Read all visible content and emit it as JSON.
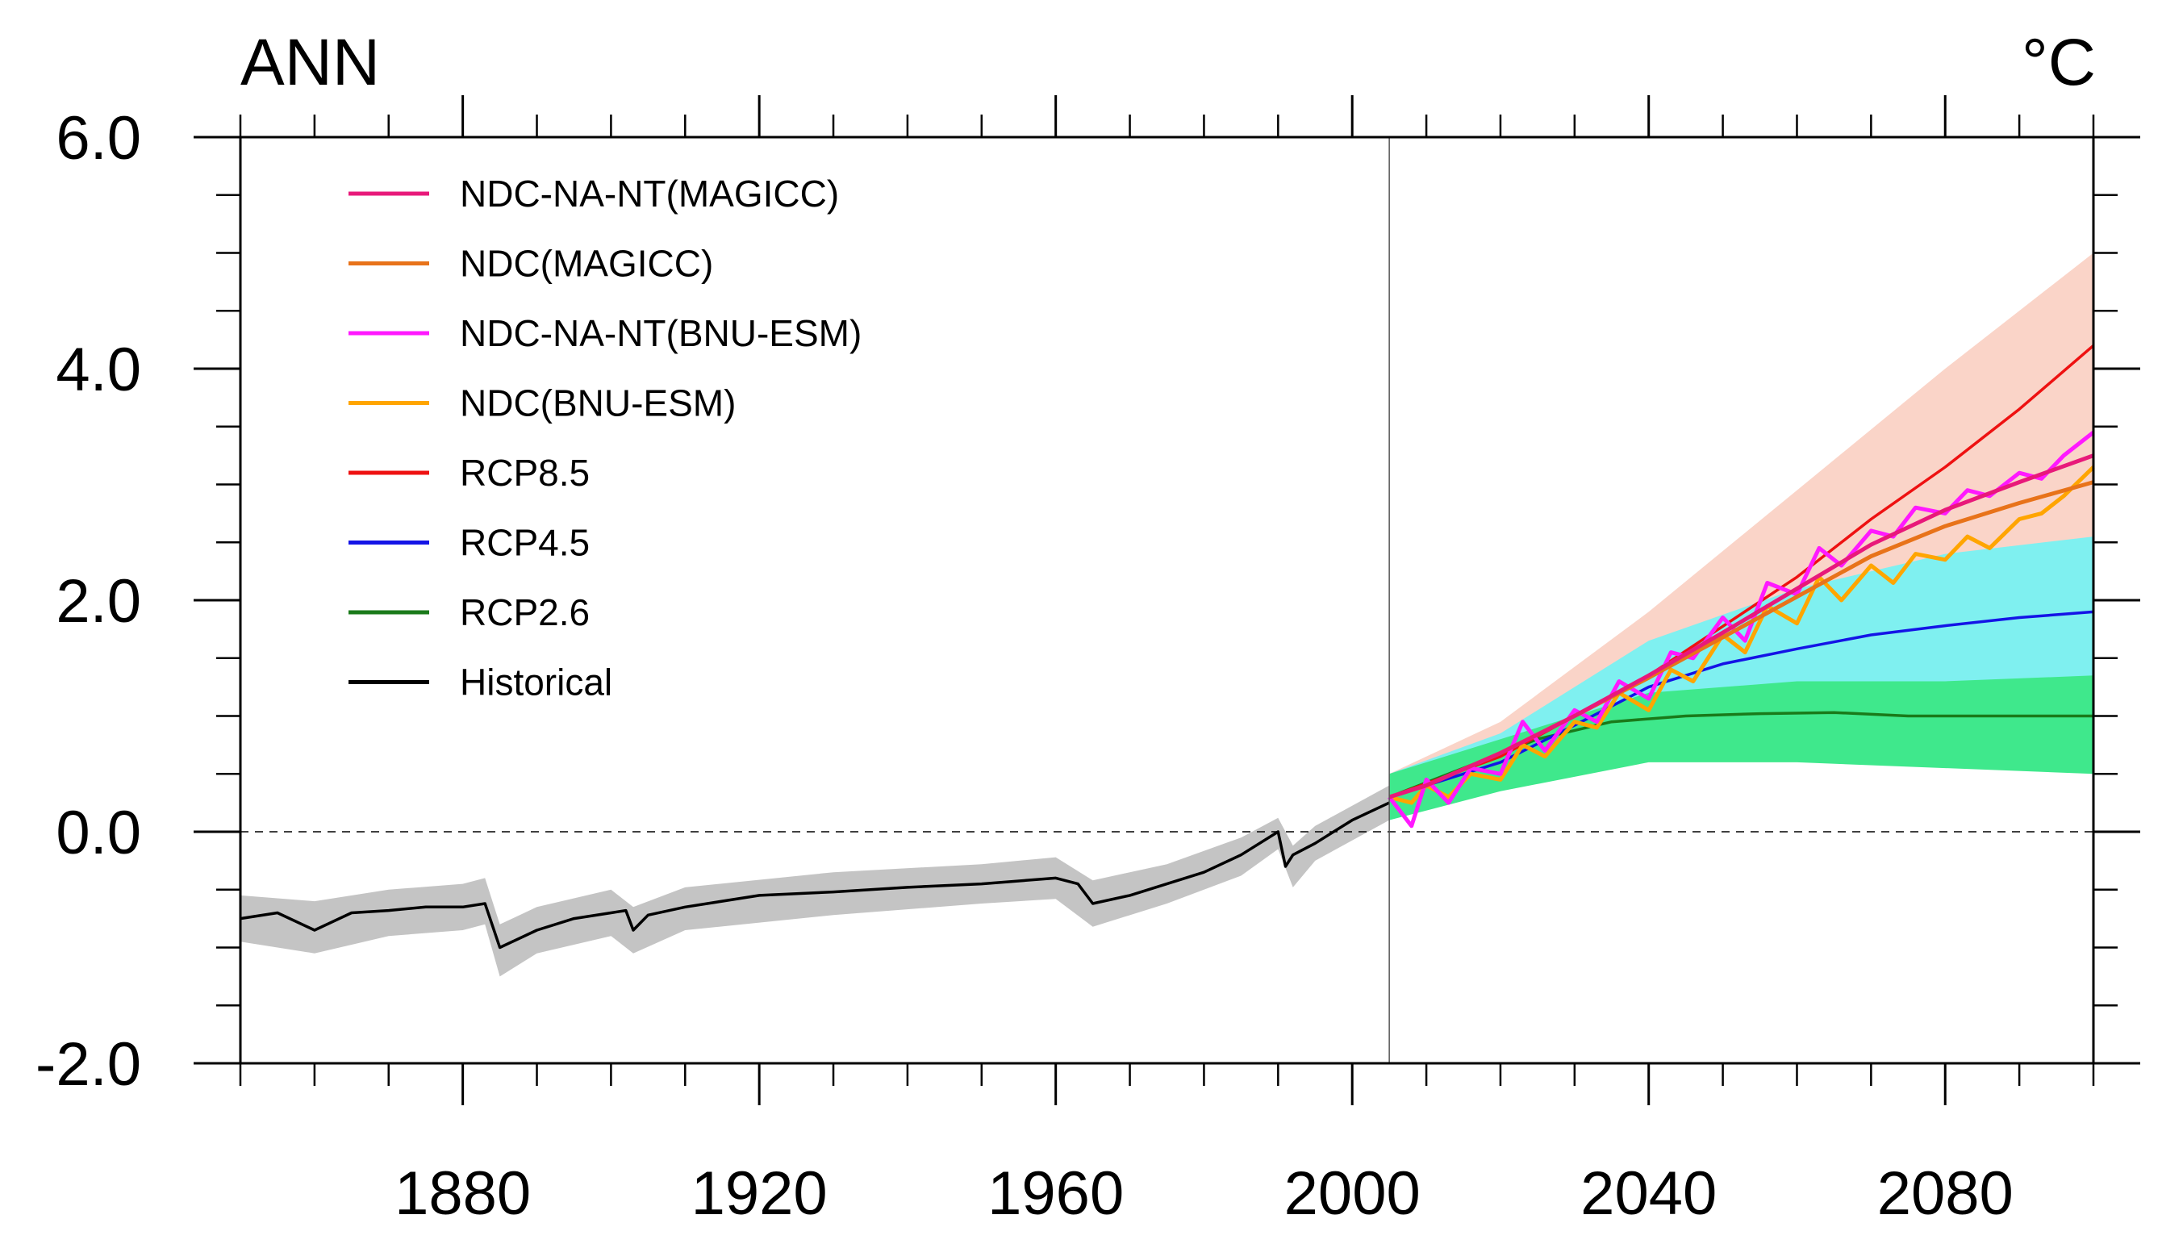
{
  "chart_data": {
    "type": "line",
    "title_left": "ANN",
    "title_right": "°C",
    "xlim": [
      1850,
      2100
    ],
    "ylim": [
      -2.0,
      6.0
    ],
    "x_ticks": [
      1880,
      1920,
      1960,
      2000,
      2040,
      2080
    ],
    "x_tick_labels": [
      "1880",
      "1920",
      "1960",
      "2000",
      "2040",
      "2080"
    ],
    "y_ticks": [
      -2.0,
      0.0,
      2.0,
      4.0,
      6.0
    ],
    "y_tick_labels": [
      "-2.0",
      "0.0",
      "2.0",
      "4.0",
      "6.0"
    ],
    "reference_line_y": 0.0,
    "divider_x": 2005,
    "legend_position": "top-left",
    "series": [
      {
        "name": "NDC-NA-NT(MAGICC)",
        "color": "#e8197a",
        "x": [
          2005,
          2010,
          2020,
          2030,
          2040,
          2050,
          2060,
          2070,
          2080,
          2090,
          2100
        ],
        "values": [
          0.3,
          0.4,
          0.68,
          1.0,
          1.35,
          1.72,
          2.1,
          2.48,
          2.78,
          3.02,
          3.25
        ]
      },
      {
        "name": "NDC(MAGICC)",
        "color": "#e8731a",
        "x": [
          2005,
          2010,
          2020,
          2030,
          2040,
          2050,
          2060,
          2070,
          2080,
          2090,
          2100
        ],
        "values": [
          0.3,
          0.4,
          0.68,
          1.0,
          1.33,
          1.68,
          2.03,
          2.38,
          2.64,
          2.84,
          3.02
        ]
      },
      {
        "name": "NDC-NA-NT(BNU-ESM)",
        "color": "#ff19ff",
        "x": [
          2005,
          2008,
          2010,
          2013,
          2016,
          2020,
          2023,
          2026,
          2030,
          2033,
          2036,
          2040,
          2043,
          2046,
          2050,
          2053,
          2056,
          2060,
          2063,
          2066,
          2070,
          2073,
          2076,
          2080,
          2083,
          2086,
          2090,
          2093,
          2096,
          2100
        ],
        "values": [
          0.3,
          0.05,
          0.45,
          0.25,
          0.55,
          0.5,
          0.95,
          0.7,
          1.05,
          0.95,
          1.3,
          1.15,
          1.55,
          1.5,
          1.85,
          1.65,
          2.15,
          2.05,
          2.45,
          2.3,
          2.6,
          2.55,
          2.8,
          2.75,
          2.95,
          2.9,
          3.1,
          3.05,
          3.25,
          3.45
        ]
      },
      {
        "name": "NDC(BNU-ESM)",
        "color": "#ffa500",
        "x": [
          2005,
          2008,
          2010,
          2013,
          2016,
          2020,
          2023,
          2026,
          2030,
          2033,
          2036,
          2040,
          2043,
          2046,
          2050,
          2053,
          2056,
          2060,
          2063,
          2066,
          2070,
          2073,
          2076,
          2080,
          2083,
          2086,
          2090,
          2093,
          2096,
          2100
        ],
        "values": [
          0.3,
          0.25,
          0.4,
          0.3,
          0.5,
          0.45,
          0.75,
          0.65,
          0.95,
          0.9,
          1.2,
          1.05,
          1.4,
          1.3,
          1.7,
          1.55,
          1.95,
          1.8,
          2.2,
          2.0,
          2.3,
          2.15,
          2.4,
          2.35,
          2.55,
          2.45,
          2.7,
          2.75,
          2.9,
          3.15
        ]
      },
      {
        "name": "RCP8.5",
        "color": "#ee1111",
        "x": [
          2005,
          2020,
          2040,
          2060,
          2070,
          2080,
          2090,
          2100
        ],
        "values": [
          0.3,
          0.65,
          1.35,
          2.2,
          2.7,
          3.15,
          3.65,
          4.2
        ]
      },
      {
        "name": "RCP4.5",
        "color": "#1414e6",
        "x": [
          2005,
          2020,
          2030,
          2040,
          2050,
          2060,
          2070,
          2080,
          2090,
          2100
        ],
        "values": [
          0.3,
          0.6,
          0.92,
          1.25,
          1.45,
          1.58,
          1.7,
          1.78,
          1.85,
          1.9
        ]
      },
      {
        "name": "RCP2.6",
        "color": "#1a7a1a",
        "x": [
          2005,
          2015,
          2025,
          2035,
          2045,
          2055,
          2065,
          2075,
          2085,
          2095,
          2100
        ],
        "values": [
          0.3,
          0.55,
          0.8,
          0.95,
          1.0,
          1.02,
          1.03,
          1.0,
          1.0,
          1.0,
          1.0
        ]
      },
      {
        "name": "Historical",
        "color": "#000000",
        "x": [
          1850,
          1855,
          1860,
          1865,
          1870,
          1875,
          1880,
          1883,
          1885,
          1890,
          1895,
          1900,
          1902,
          1903,
          1905,
          1910,
          1920,
          1930,
          1940,
          1950,
          1960,
          1963,
          1965,
          1970,
          1975,
          1980,
          1985,
          1990,
          1991,
          1992,
          1995,
          2000,
          2005
        ],
        "values": [
          -0.75,
          -0.7,
          -0.85,
          -0.7,
          -0.68,
          -0.65,
          -0.65,
          -0.62,
          -1.0,
          -0.85,
          -0.75,
          -0.7,
          -0.68,
          -0.85,
          -0.72,
          -0.65,
          -0.55,
          -0.52,
          -0.48,
          -0.45,
          -0.4,
          -0.45,
          -0.62,
          -0.55,
          -0.45,
          -0.35,
          -0.2,
          0.0,
          -0.3,
          -0.2,
          -0.1,
          0.1,
          0.25
        ]
      }
    ],
    "bands": [
      {
        "name": "Historical spread",
        "color": "#c4c4c4",
        "x": [
          1850,
          1860,
          1870,
          1880,
          1883,
          1885,
          1890,
          1900,
          1903,
          1910,
          1930,
          1950,
          1960,
          1965,
          1975,
          1985,
          1990,
          1992,
          1995,
          2005
        ],
        "lower": [
          -0.95,
          -1.05,
          -0.9,
          -0.85,
          -0.8,
          -1.25,
          -1.05,
          -0.9,
          -1.05,
          -0.85,
          -0.72,
          -0.62,
          -0.58,
          -0.82,
          -0.62,
          -0.38,
          -0.15,
          -0.48,
          -0.25,
          0.1
        ],
        "upper": [
          -0.55,
          -0.6,
          -0.5,
          -0.45,
          -0.4,
          -0.8,
          -0.65,
          -0.5,
          -0.65,
          -0.48,
          -0.35,
          -0.28,
          -0.22,
          -0.42,
          -0.28,
          -0.05,
          0.12,
          -0.12,
          0.05,
          0.4
        ]
      },
      {
        "name": "RCP8.5 spread",
        "color": "#fad4c8",
        "x": [
          2005,
          2020,
          2040,
          2060,
          2080,
          2100
        ],
        "lower": [
          0.1,
          0.45,
          0.95,
          1.55,
          2.0,
          2.5
        ],
        "upper": [
          0.5,
          0.95,
          1.9,
          2.95,
          4.0,
          5.0
        ]
      },
      {
        "name": "RCP4.5 spread",
        "color": "#7ff0f0",
        "x": [
          2005,
          2020,
          2040,
          2060,
          2080,
          2100
        ],
        "lower": [
          0.1,
          0.4,
          0.8,
          1.0,
          1.15,
          1.3
        ],
        "upper": [
          0.5,
          0.85,
          1.65,
          2.1,
          2.4,
          2.55
        ]
      },
      {
        "name": "RCP2.6 spread",
        "color": "#3fe88c",
        "x": [
          2005,
          2020,
          2040,
          2060,
          2080,
          2100
        ],
        "lower": [
          0.1,
          0.35,
          0.6,
          0.6,
          0.55,
          0.5
        ],
        "upper": [
          0.5,
          0.8,
          1.2,
          1.3,
          1.3,
          1.35
        ]
      }
    ]
  }
}
